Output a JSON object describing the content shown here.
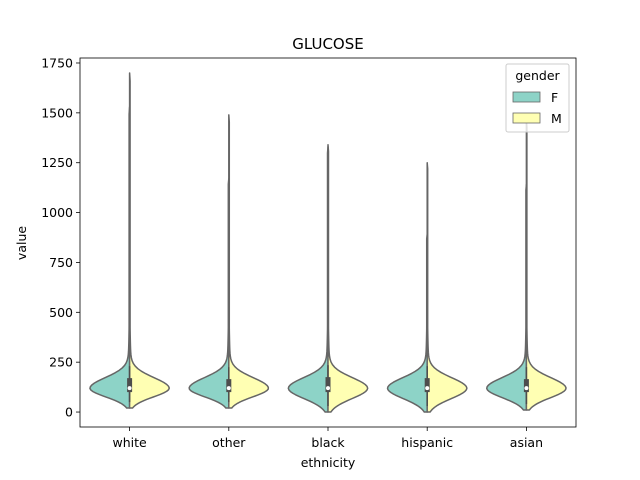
{
  "chart_data": {
    "type": "violin",
    "title": "GLUCOSE",
    "xlabel": "ethnicity",
    "ylabel": "value",
    "ylim": [
      -75,
      1775
    ],
    "yticks": [
      0,
      250,
      500,
      750,
      1000,
      1250,
      1500,
      1750
    ],
    "ytick_labels": [
      "0",
      "250",
      "500",
      "750",
      "1000",
      "1250",
      "1500",
      "1750"
    ],
    "categories": [
      "white",
      "other",
      "black",
      "hispanic",
      "asian"
    ],
    "legend": {
      "title": "gender",
      "position": "top-right",
      "entries": [
        {
          "label": "F",
          "color": "#8dd3c7"
        },
        {
          "label": "M",
          "color": "#ffffb3"
        }
      ]
    },
    "split": true,
    "series": [
      {
        "name": "F",
        "color": "#8dd3c7",
        "max": [
          1530,
          1170,
          1330,
          890,
          1140
        ],
        "median": [
          120,
          120,
          120,
          120,
          120
        ],
        "q1": [
          100,
          100,
          100,
          100,
          100
        ],
        "q3": [
          170,
          165,
          175,
          170,
          165
        ],
        "min": [
          20,
          20,
          0,
          0,
          10
        ]
      },
      {
        "name": "M",
        "color": "#ffffb3",
        "max": [
          1700,
          1490,
          1340,
          1250,
          1460
        ],
        "median": [
          120,
          120,
          120,
          120,
          120
        ],
        "q1": [
          100,
          100,
          100,
          100,
          100
        ],
        "q3": [
          170,
          165,
          175,
          170,
          165
        ],
        "min": [
          20,
          20,
          0,
          0,
          10
        ]
      }
    ],
    "colors": {
      "edge": "#666666",
      "box": "#4d4d4d",
      "median": "#ffffff",
      "axis": "#000000"
    }
  }
}
